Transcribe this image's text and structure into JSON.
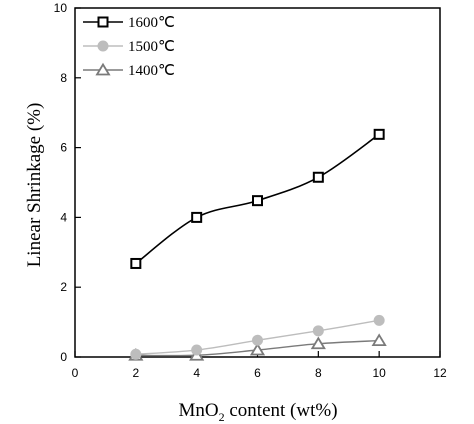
{
  "chart_data": {
    "type": "line",
    "xlabel": "MnO",
    "xlabel_subscript": "2",
    "xlabel_suffix": " content (wt%)",
    "ylabel": "Linear Shrinkage (%)",
    "xlim": [
      0,
      12
    ],
    "ylim": [
      0,
      10
    ],
    "x_ticks": [
      0,
      2,
      4,
      6,
      8,
      10,
      12
    ],
    "y_ticks": [
      0,
      2,
      4,
      6,
      8,
      10
    ],
    "legend_position": "top-left",
    "grid": false,
    "x": [
      2,
      4,
      6,
      8,
      10
    ],
    "series": [
      {
        "name": "1600℃",
        "values": [
          2.68,
          4.0,
          4.48,
          5.15,
          6.38
        ],
        "color": "#000000",
        "marker": "square"
      },
      {
        "name": "1500℃",
        "values": [
          0.08,
          0.2,
          0.48,
          0.75,
          1.05
        ],
        "color": "#bdbdbd",
        "marker": "circle"
      },
      {
        "name": "1400℃",
        "values": [
          0.05,
          0.05,
          0.2,
          0.38,
          0.47
        ],
        "color": "#7a7a7a",
        "marker": "triangle"
      }
    ]
  }
}
